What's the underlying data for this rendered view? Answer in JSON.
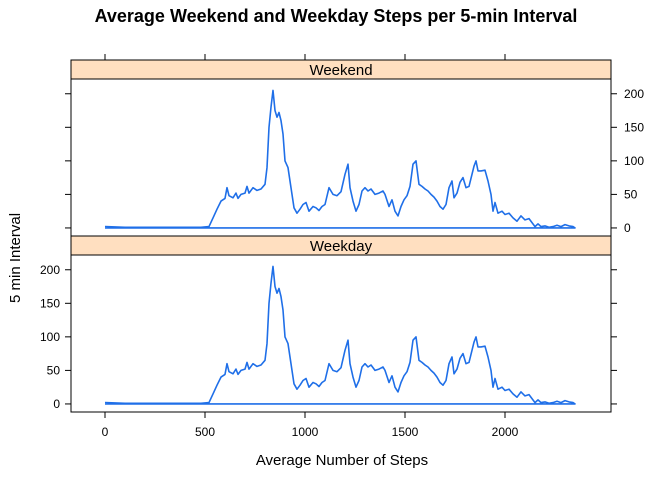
{
  "chart_data": {
    "type": "line",
    "title": "Average Weekend and Weekday Steps per 5-min Interval",
    "xlabel": "Average Number of Steps",
    "ylabel": "5 min Interval",
    "xlim": [
      -170,
      2530
    ],
    "ylim": [
      -12,
      222
    ],
    "xticks": [
      0,
      500,
      1000,
      1500,
      2000
    ],
    "yticks": [
      0,
      50,
      100,
      150,
      200
    ],
    "xtick_labels": [
      "0",
      "500",
      "1000",
      "1500",
      "2000"
    ],
    "ytick_labels": [
      "0",
      "50",
      "100",
      "150",
      "200"
    ],
    "line_color": "#1f6fe8",
    "strip_color": "#ffdfc0",
    "panels": [
      {
        "name": "Weekend",
        "y_axis_side": "right",
        "points": [
          [
            0,
            2
          ],
          [
            100,
            1
          ],
          [
            200,
            1
          ],
          [
            300,
            1
          ],
          [
            400,
            1
          ],
          [
            480,
            1
          ],
          [
            520,
            2
          ],
          [
            540,
            15
          ],
          [
            560,
            28
          ],
          [
            580,
            40
          ],
          [
            600,
            44
          ],
          [
            610,
            60
          ],
          [
            620,
            48
          ],
          [
            640,
            45
          ],
          [
            655,
            52
          ],
          [
            665,
            44
          ],
          [
            680,
            50
          ],
          [
            700,
            52
          ],
          [
            710,
            62
          ],
          [
            720,
            52
          ],
          [
            740,
            60
          ],
          [
            760,
            56
          ],
          [
            780,
            58
          ],
          [
            800,
            65
          ],
          [
            810,
            90
          ],
          [
            820,
            150
          ],
          [
            830,
            180
          ],
          [
            840,
            205
          ],
          [
            850,
            175
          ],
          [
            860,
            165
          ],
          [
            870,
            172
          ],
          [
            880,
            160
          ],
          [
            890,
            140
          ],
          [
            900,
            100
          ],
          [
            915,
            90
          ],
          [
            930,
            60
          ],
          [
            945,
            30
          ],
          [
            960,
            22
          ],
          [
            975,
            28
          ],
          [
            990,
            35
          ],
          [
            1005,
            38
          ],
          [
            1020,
            25
          ],
          [
            1040,
            32
          ],
          [
            1055,
            30
          ],
          [
            1070,
            26
          ],
          [
            1085,
            32
          ],
          [
            1100,
            35
          ],
          [
            1120,
            60
          ],
          [
            1140,
            50
          ],
          [
            1160,
            48
          ],
          [
            1180,
            54
          ],
          [
            1200,
            80
          ],
          [
            1215,
            95
          ],
          [
            1225,
            60
          ],
          [
            1240,
            40
          ],
          [
            1255,
            25
          ],
          [
            1270,
            35
          ],
          [
            1285,
            55
          ],
          [
            1300,
            60
          ],
          [
            1315,
            55
          ],
          [
            1330,
            58
          ],
          [
            1350,
            50
          ],
          [
            1370,
            52
          ],
          [
            1390,
            55
          ],
          [
            1400,
            50
          ],
          [
            1420,
            32
          ],
          [
            1435,
            42
          ],
          [
            1450,
            25
          ],
          [
            1465,
            18
          ],
          [
            1480,
            32
          ],
          [
            1495,
            42
          ],
          [
            1510,
            48
          ],
          [
            1525,
            62
          ],
          [
            1540,
            95
          ],
          [
            1555,
            100
          ],
          [
            1570,
            65
          ],
          [
            1585,
            62
          ],
          [
            1600,
            58
          ],
          [
            1615,
            55
          ],
          [
            1630,
            50
          ],
          [
            1645,
            46
          ],
          [
            1660,
            40
          ],
          [
            1675,
            32
          ],
          [
            1690,
            28
          ],
          [
            1705,
            35
          ],
          [
            1720,
            60
          ],
          [
            1735,
            70
          ],
          [
            1745,
            45
          ],
          [
            1760,
            52
          ],
          [
            1775,
            68
          ],
          [
            1790,
            75
          ],
          [
            1805,
            60
          ],
          [
            1820,
            62
          ],
          [
            1835,
            80
          ],
          [
            1845,
            92
          ],
          [
            1855,
            100
          ],
          [
            1865,
            85
          ],
          [
            1880,
            85
          ],
          [
            1900,
            86
          ],
          [
            1915,
            70
          ],
          [
            1930,
            50
          ],
          [
            1940,
            25
          ],
          [
            1950,
            38
          ],
          [
            1965,
            22
          ],
          [
            1985,
            25
          ],
          [
            2000,
            20
          ],
          [
            2020,
            22
          ],
          [
            2040,
            15
          ],
          [
            2060,
            10
          ],
          [
            2080,
            18
          ],
          [
            2100,
            12
          ],
          [
            2120,
            14
          ],
          [
            2135,
            8
          ],
          [
            2150,
            2
          ],
          [
            2165,
            6
          ],
          [
            2180,
            2
          ],
          [
            2200,
            3
          ],
          [
            2220,
            1
          ],
          [
            2240,
            2
          ],
          [
            2260,
            4
          ],
          [
            2280,
            2
          ],
          [
            2300,
            5
          ],
          [
            2320,
            3
          ],
          [
            2340,
            2
          ],
          [
            2350,
            0
          ],
          [
            1500,
            0
          ],
          [
            1000,
            0
          ],
          [
            500,
            0
          ],
          [
            0,
            0
          ]
        ]
      },
      {
        "name": "Weekday",
        "y_axis_side": "left",
        "points": [
          [
            0,
            2
          ],
          [
            100,
            1
          ],
          [
            200,
            1
          ],
          [
            300,
            1
          ],
          [
            400,
            1
          ],
          [
            480,
            1
          ],
          [
            520,
            2
          ],
          [
            540,
            15
          ],
          [
            560,
            28
          ],
          [
            580,
            40
          ],
          [
            600,
            44
          ],
          [
            610,
            60
          ],
          [
            620,
            48
          ],
          [
            640,
            45
          ],
          [
            655,
            52
          ],
          [
            665,
            44
          ],
          [
            680,
            50
          ],
          [
            700,
            52
          ],
          [
            710,
            62
          ],
          [
            720,
            52
          ],
          [
            740,
            60
          ],
          [
            760,
            56
          ],
          [
            780,
            58
          ],
          [
            800,
            65
          ],
          [
            810,
            90
          ],
          [
            820,
            150
          ],
          [
            830,
            180
          ],
          [
            840,
            205
          ],
          [
            850,
            175
          ],
          [
            860,
            165
          ],
          [
            870,
            172
          ],
          [
            880,
            160
          ],
          [
            890,
            140
          ],
          [
            900,
            100
          ],
          [
            915,
            90
          ],
          [
            930,
            60
          ],
          [
            945,
            30
          ],
          [
            960,
            22
          ],
          [
            975,
            28
          ],
          [
            990,
            35
          ],
          [
            1005,
            38
          ],
          [
            1020,
            25
          ],
          [
            1040,
            32
          ],
          [
            1055,
            30
          ],
          [
            1070,
            26
          ],
          [
            1085,
            32
          ],
          [
            1100,
            35
          ],
          [
            1120,
            60
          ],
          [
            1140,
            50
          ],
          [
            1160,
            48
          ],
          [
            1180,
            54
          ],
          [
            1200,
            80
          ],
          [
            1215,
            95
          ],
          [
            1225,
            60
          ],
          [
            1240,
            40
          ],
          [
            1255,
            25
          ],
          [
            1270,
            35
          ],
          [
            1285,
            55
          ],
          [
            1300,
            60
          ],
          [
            1315,
            55
          ],
          [
            1330,
            58
          ],
          [
            1350,
            50
          ],
          [
            1370,
            52
          ],
          [
            1390,
            55
          ],
          [
            1400,
            50
          ],
          [
            1420,
            32
          ],
          [
            1435,
            42
          ],
          [
            1450,
            25
          ],
          [
            1465,
            18
          ],
          [
            1480,
            32
          ],
          [
            1495,
            42
          ],
          [
            1510,
            48
          ],
          [
            1525,
            62
          ],
          [
            1540,
            95
          ],
          [
            1555,
            100
          ],
          [
            1570,
            65
          ],
          [
            1585,
            62
          ],
          [
            1600,
            58
          ],
          [
            1615,
            55
          ],
          [
            1630,
            50
          ],
          [
            1645,
            46
          ],
          [
            1660,
            40
          ],
          [
            1675,
            32
          ],
          [
            1690,
            28
          ],
          [
            1705,
            35
          ],
          [
            1720,
            60
          ],
          [
            1735,
            70
          ],
          [
            1745,
            45
          ],
          [
            1760,
            52
          ],
          [
            1775,
            68
          ],
          [
            1790,
            75
          ],
          [
            1805,
            60
          ],
          [
            1820,
            62
          ],
          [
            1835,
            80
          ],
          [
            1845,
            92
          ],
          [
            1855,
            100
          ],
          [
            1865,
            85
          ],
          [
            1880,
            85
          ],
          [
            1900,
            86
          ],
          [
            1915,
            70
          ],
          [
            1930,
            50
          ],
          [
            1940,
            25
          ],
          [
            1950,
            38
          ],
          [
            1965,
            22
          ],
          [
            1985,
            25
          ],
          [
            2000,
            20
          ],
          [
            2020,
            22
          ],
          [
            2040,
            15
          ],
          [
            2060,
            10
          ],
          [
            2080,
            18
          ],
          [
            2100,
            12
          ],
          [
            2120,
            14
          ],
          [
            2135,
            8
          ],
          [
            2150,
            2
          ],
          [
            2165,
            6
          ],
          [
            2180,
            2
          ],
          [
            2200,
            3
          ],
          [
            2220,
            1
          ],
          [
            2240,
            2
          ],
          [
            2260,
            4
          ],
          [
            2280,
            2
          ],
          [
            2300,
            5
          ],
          [
            2320,
            3
          ],
          [
            2340,
            2
          ],
          [
            2350,
            0
          ],
          [
            1500,
            0
          ],
          [
            1000,
            0
          ],
          [
            500,
            0
          ],
          [
            0,
            0
          ]
        ]
      }
    ]
  }
}
